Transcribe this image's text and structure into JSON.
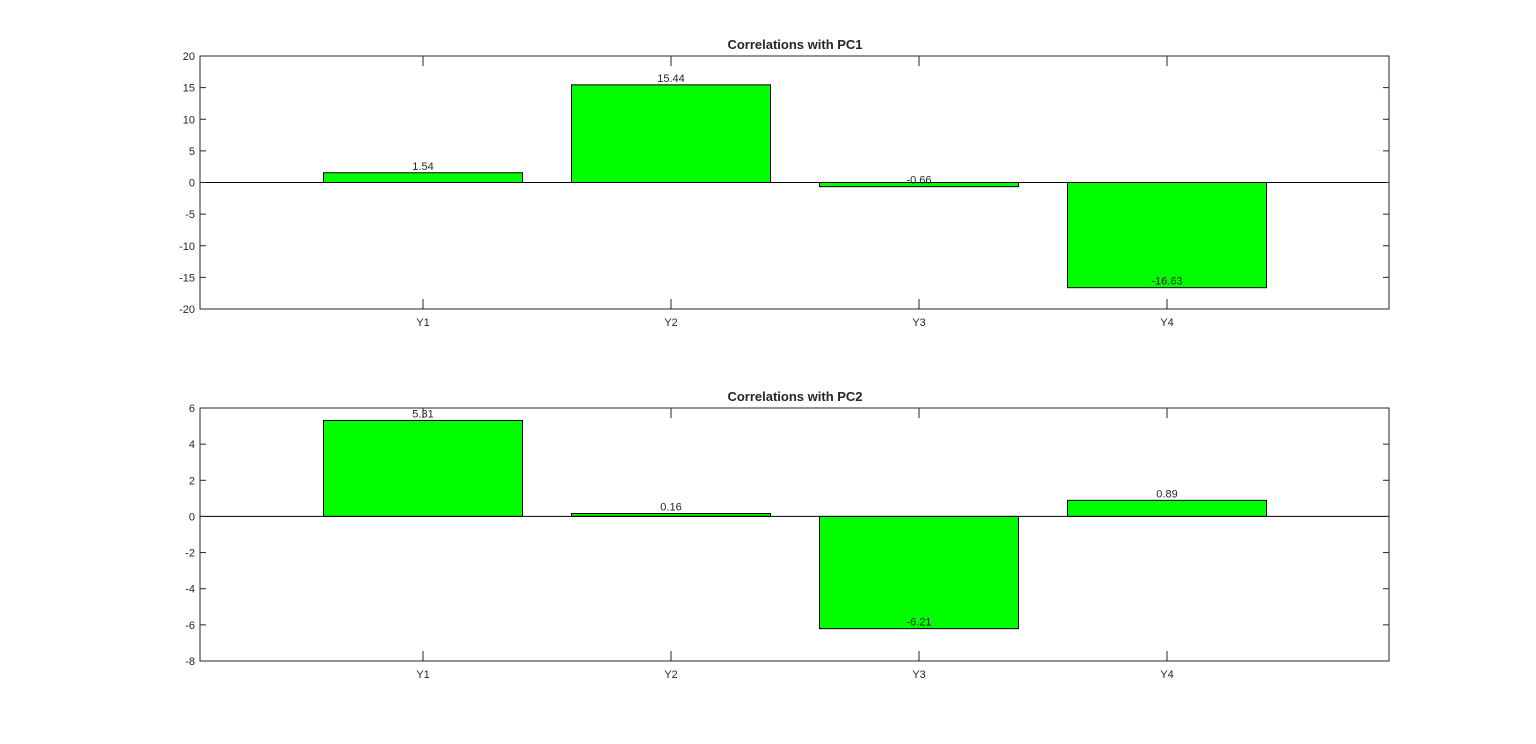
{
  "chart_data": [
    {
      "type": "bar",
      "title": "Correlations  with PC1",
      "xlabel": "",
      "ylabel": "",
      "categories": [
        "Y1",
        "Y2",
        "Y3",
        "Y4"
      ],
      "values": [
        1.54,
        15.44,
        -0.66,
        -16.63
      ],
      "value_labels": [
        "1.54",
        "15.44",
        "-0.66",
        "-16.63"
      ],
      "ylim": [
        -20,
        20
      ],
      "yticks": [
        -20,
        -15,
        -10,
        -5,
        0,
        5,
        10,
        15,
        20
      ],
      "bar_color": "#00ff00",
      "grid": false,
      "legend": "none"
    },
    {
      "type": "bar",
      "title": "Correlations  with PC2",
      "xlabel": "",
      "ylabel": "",
      "categories": [
        "Y1",
        "Y2",
        "Y3",
        "Y4"
      ],
      "values": [
        5.31,
        0.16,
        -6.21,
        0.89
      ],
      "value_labels": [
        "5.31",
        "0.16",
        "-6.21",
        "0.89"
      ],
      "ylim": [
        -8,
        6
      ],
      "yticks": [
        -8,
        -6,
        -4,
        -2,
        0,
        2,
        4,
        6
      ],
      "bar_color": "#00ff00",
      "grid": false,
      "legend": "none"
    }
  ]
}
